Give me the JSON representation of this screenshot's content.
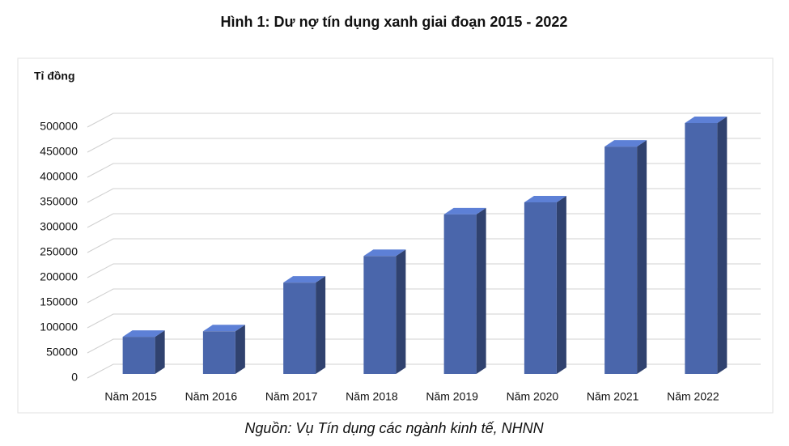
{
  "chart_data": {
    "type": "bar3d",
    "title": "Hình 1: Dư nợ tín dụng xanh giai đoạn 2015 - 2022",
    "y_axis_label": "Tỉ đồng",
    "source": "Nguồn: Vụ Tín dụng các ngành kinh tế, NHNN",
    "categories": [
      "Năm 2015",
      "Năm 2016",
      "Năm 2017",
      "Năm 2018",
      "Năm 2019",
      "Năm 2020",
      "Năm 2021",
      "Năm 2022"
    ],
    "values": [
      74000,
      85000,
      182000,
      235000,
      318000,
      342000,
      453000,
      500000
    ],
    "color": "#4a66ab",
    "ylim": [
      0,
      500000
    ],
    "yticks": [
      0,
      50000,
      100000,
      150000,
      200000,
      250000,
      300000,
      350000,
      400000,
      450000,
      500000
    ],
    "grid": true
  }
}
